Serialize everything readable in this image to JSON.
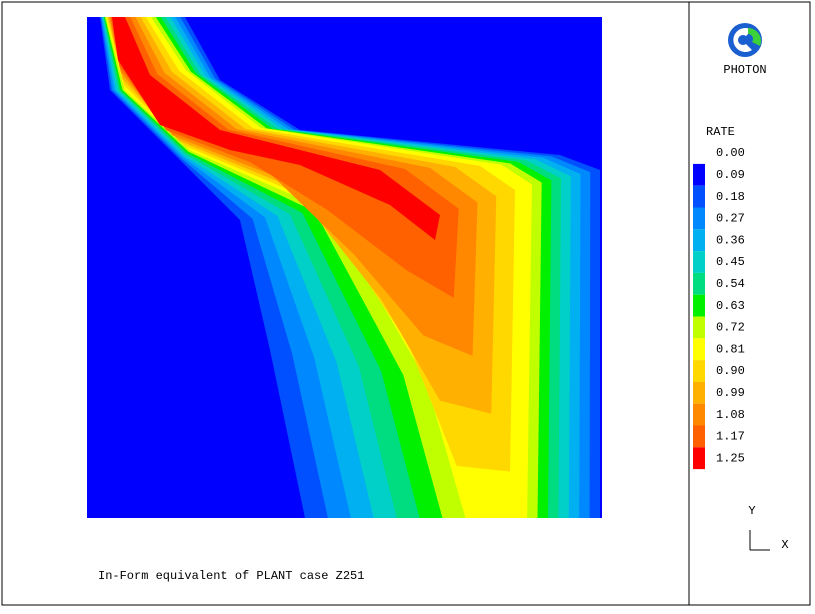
{
  "logo": {
    "label": "PHOTON"
  },
  "legend": {
    "title": "RATE",
    "levels": [
      {
        "label": "0.00"
      },
      {
        "label": "0.09",
        "color": "#0000ff"
      },
      {
        "label": "0.18",
        "color": "#0050ff"
      },
      {
        "label": "0.27",
        "color": "#0088ff"
      },
      {
        "label": "0.36",
        "color": "#00b0f0"
      },
      {
        "label": "0.45",
        "color": "#00d0c8"
      },
      {
        "label": "0.54",
        "color": "#00dc80"
      },
      {
        "label": "0.63",
        "color": "#00f000"
      },
      {
        "label": "0.72",
        "color": "#c0ff00"
      },
      {
        "label": "0.81",
        "color": "#ffff00"
      },
      {
        "label": "0.90",
        "color": "#ffd800"
      },
      {
        "label": "0.99",
        "color": "#ffb000"
      },
      {
        "label": "1.08",
        "color": "#ff8800"
      },
      {
        "label": "1.17",
        "color": "#ff6000"
      },
      {
        "label": "1.25",
        "color": "#ff0000"
      }
    ]
  },
  "axes": {
    "y": "Y",
    "x": "X"
  },
  "caption": "In-Form equivalent of PLANT case Z251"
}
